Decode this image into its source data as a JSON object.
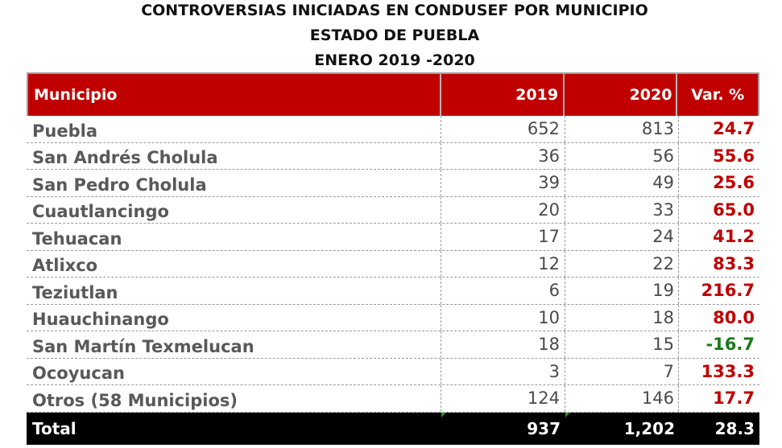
{
  "title": {
    "line1": "CONTROVERSIAS INICIADAS EN CONDUSEF POR MUNICIPIO",
    "line2": "ESTADO DE PUEBLA",
    "line3": "ENERO 2019 -2020"
  },
  "table": {
    "headers": {
      "municipio": "Municipio",
      "y2019": "2019",
      "y2020": "2020",
      "var": "Var. %"
    },
    "rows": [
      {
        "municipio": "Puebla",
        "y2019": "652",
        "y2020": "813",
        "var": "24.7"
      },
      {
        "municipio": "San Andrés Cholula",
        "y2019": "36",
        "y2020": "56",
        "var": "55.6"
      },
      {
        "municipio": "San Pedro Cholula",
        "y2019": "39",
        "y2020": "49",
        "var": "25.6"
      },
      {
        "municipio": "Cuautlancingo",
        "y2019": "20",
        "y2020": "33",
        "var": "65.0"
      },
      {
        "municipio": "Tehuacan",
        "y2019": "17",
        "y2020": "24",
        "var": "41.2"
      },
      {
        "municipio": "Atlixco",
        "y2019": "12",
        "y2020": "22",
        "var": "83.3"
      },
      {
        "municipio": "Teziutlan",
        "y2019": "6",
        "y2020": "19",
        "var": "216.7"
      },
      {
        "municipio": "Huauchinango",
        "y2019": "10",
        "y2020": "18",
        "var": "80.0"
      },
      {
        "municipio": "San Martín Texmelucan",
        "y2019": "18",
        "y2020": "15",
        "var": "-16.7"
      },
      {
        "municipio": "Ocoyucan",
        "y2019": "3",
        "y2020": "7",
        "var": "133.3"
      },
      {
        "municipio": "Otros (58 Municipios)",
        "y2019": "124",
        "y2020": "146",
        "var": "17.7"
      }
    ],
    "total": {
      "label": "Total",
      "y2019": "937",
      "y2020": "1,202",
      "var": "28.3"
    }
  },
  "colors": {
    "header_bg": "#c00000",
    "positive": "#c00000",
    "negative": "#1a7a1a",
    "total_bg": "#000000"
  }
}
